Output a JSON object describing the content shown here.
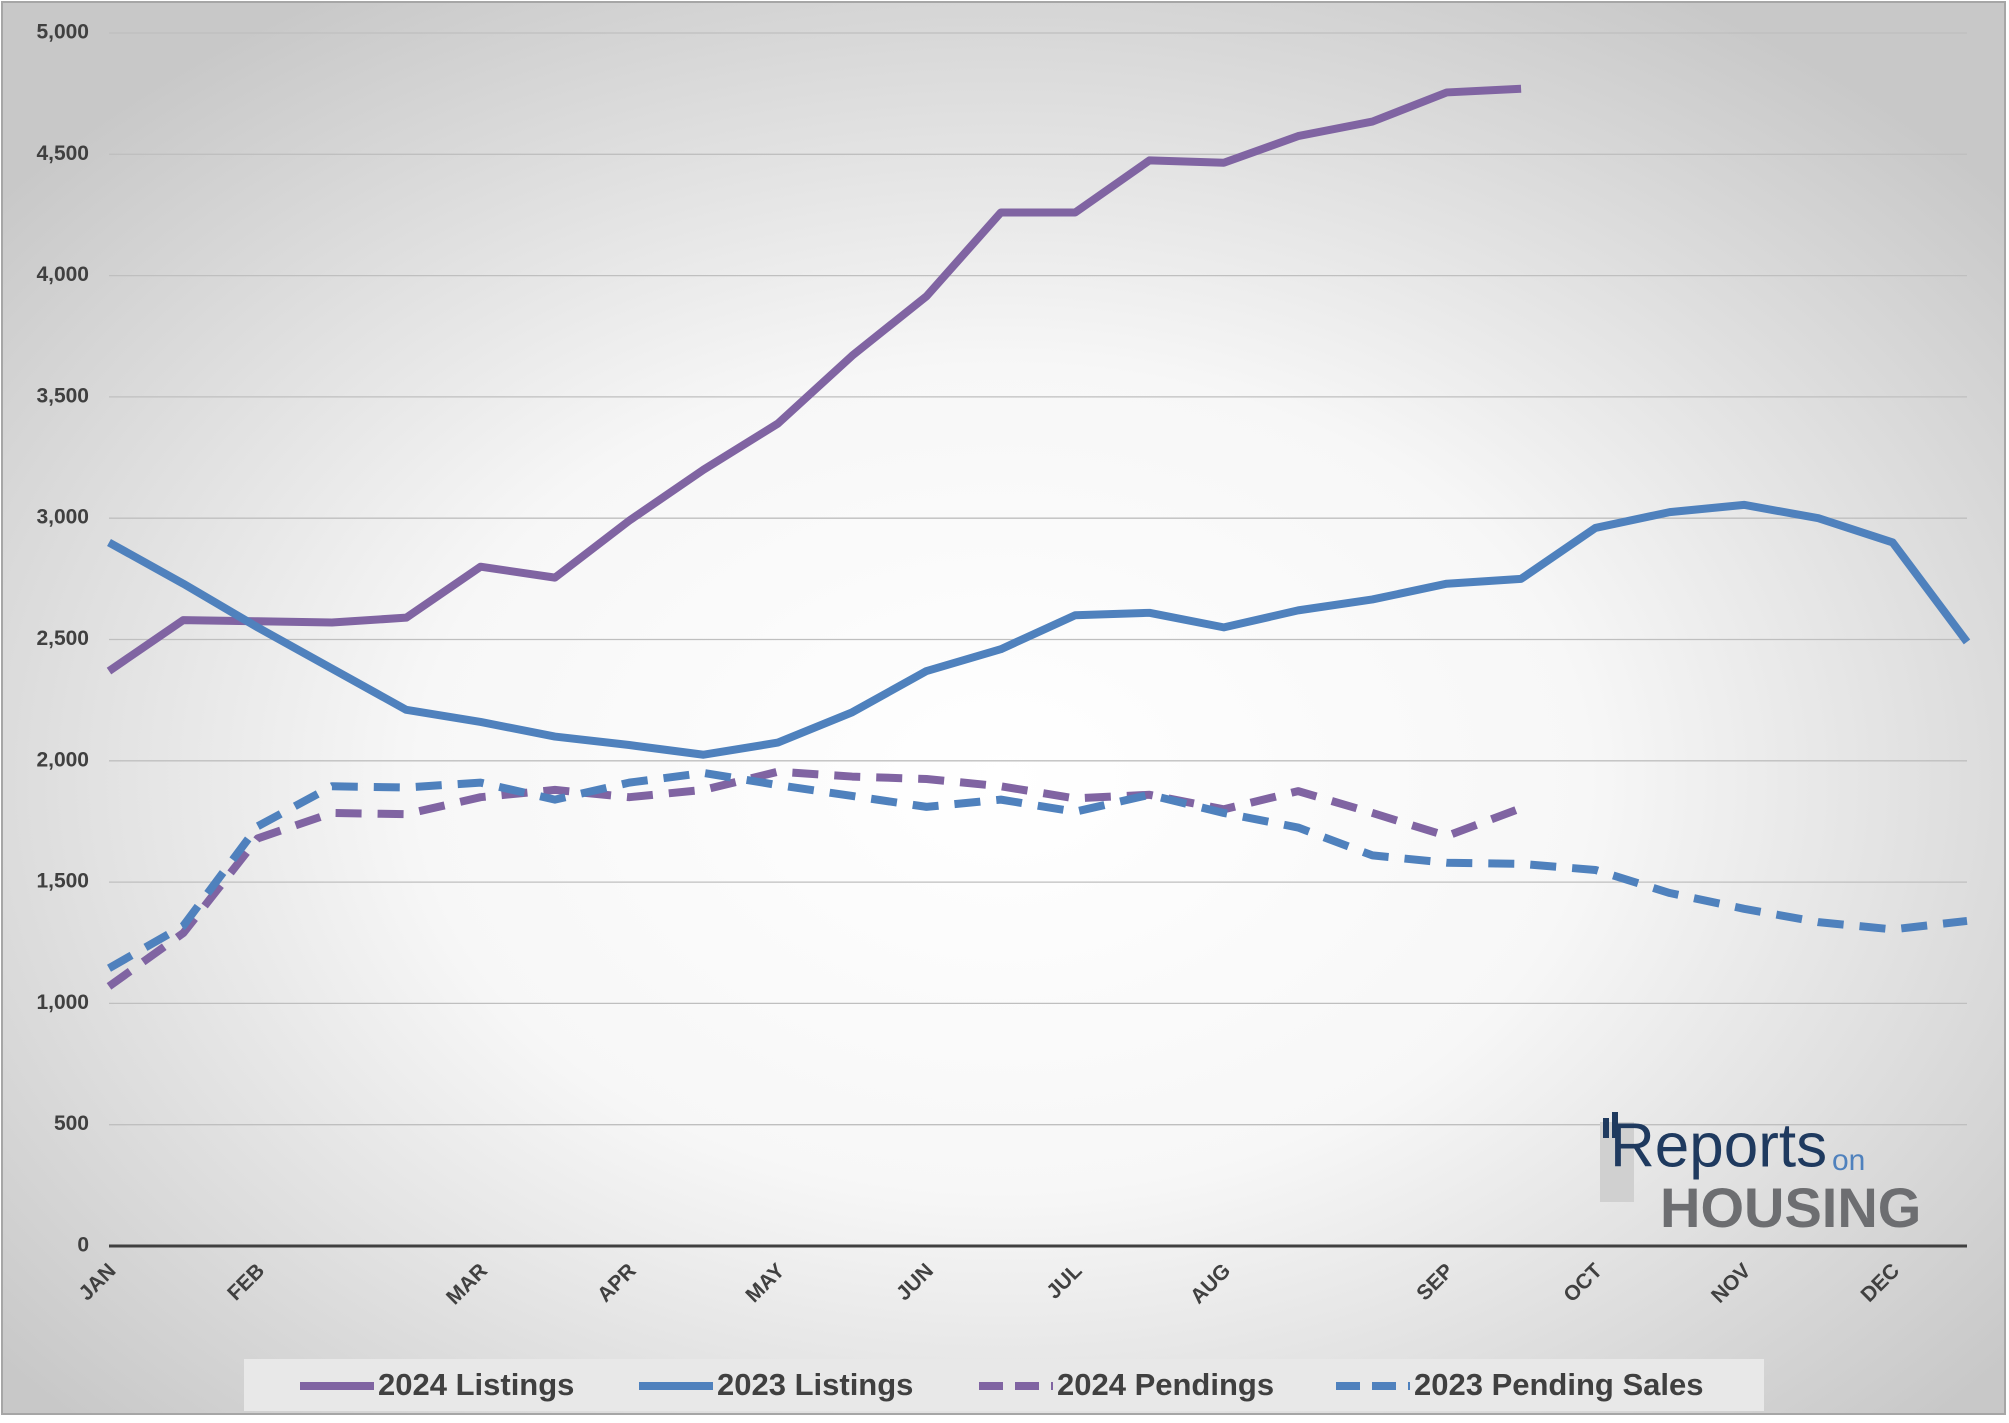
{
  "chart_data": {
    "type": "line",
    "categories": [
      "JAN",
      null,
      "FEB",
      null,
      null,
      "MAR",
      null,
      "APR",
      null,
      "MAY",
      null,
      "JUN",
      null,
      "JUL",
      null,
      "AUG",
      null,
      null,
      "SEP",
      null,
      "OCT",
      null,
      "NOV",
      null,
      "DEC",
      null
    ],
    "series": [
      {
        "name": "2024 Listings",
        "color": "#8064a2",
        "dashed": false,
        "values": [
          2370,
          2580,
          2575,
          2570,
          2590,
          2800,
          2755,
          2990,
          3200,
          3390,
          3670,
          3915,
          4260,
          4260,
          4475,
          4465,
          4575,
          4635,
          4755,
          4770,
          null,
          null,
          null,
          null,
          null,
          null
        ]
      },
      {
        "name": "2023 Listings",
        "color": "#4f81bd",
        "dashed": false,
        "values": [
          2900,
          2730,
          2550,
          2380,
          2210,
          2160,
          2100,
          2065,
          2025,
          2075,
          2200,
          2370,
          2460,
          2600,
          2610,
          2550,
          2620,
          2665,
          2730,
          2750,
          2960,
          3025,
          3055,
          3000,
          2900,
          2490
        ]
      },
      {
        "name": "2024 Pendings",
        "color": "#8064a2",
        "dashed": true,
        "values": [
          1070,
          1290,
          1680,
          1785,
          1780,
          1850,
          1880,
          1850,
          1880,
          1955,
          1935,
          1925,
          1895,
          1845,
          1860,
          1800,
          1875,
          1785,
          1690,
          1805,
          null,
          null,
          null,
          null,
          null,
          null
        ]
      },
      {
        "name": "2023 Pending Sales",
        "color": "#4f81bd",
        "dashed": true,
        "values": [
          1145,
          1320,
          1730,
          1895,
          1890,
          1910,
          1840,
          1910,
          1950,
          1900,
          1855,
          1810,
          1840,
          1790,
          1860,
          1785,
          1725,
          1610,
          1580,
          1575,
          1550,
          1455,
          1390,
          1335,
          1305,
          1340
        ]
      }
    ],
    "ylim": [
      0,
      5000
    ],
    "yticks": [
      0,
      500,
      {
        "value": 1000,
        "label": "1,000"
      },
      {
        "value": 1500,
        "label": "1,500"
      },
      {
        "value": 2000,
        "label": "2,000"
      },
      {
        "value": 2500,
        "label": "2,500"
      },
      {
        "value": 3000,
        "label": "3,000"
      },
      {
        "value": 3500,
        "label": "3,500"
      },
      {
        "value": 4000,
        "label": "4,000"
      },
      {
        "value": 4500,
        "label": "4,500"
      },
      {
        "value": 5000,
        "label": "5,000"
      }
    ],
    "grid": true,
    "legend": "bottom",
    "logo": {
      "main": "Reports",
      "small": "on",
      "sub": "HOUSING"
    }
  }
}
